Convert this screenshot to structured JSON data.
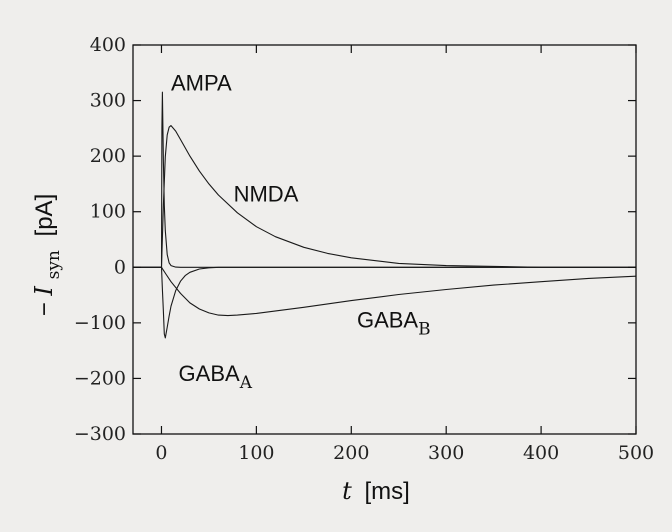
{
  "chart_data": {
    "type": "line",
    "title": "",
    "xlabel": {
      "var": "t",
      "unit": "[ms]"
    },
    "ylabel": {
      "prefix": "−",
      "var": "I",
      "sub": "syn",
      "unit": "[pA]"
    },
    "xlim": [
      -30,
      500
    ],
    "ylim": [
      -300,
      400
    ],
    "xticks": [
      0,
      100,
      200,
      300,
      400,
      500
    ],
    "yticks": [
      -300,
      -200,
      -100,
      0,
      100,
      200,
      300,
      400
    ],
    "xtick_labels": [
      "0",
      "100",
      "200",
      "300",
      "400",
      "500"
    ],
    "ytick_labels": [
      "−300",
      "−200",
      "−100",
      "0",
      "100",
      "200",
      "300",
      "400"
    ],
    "grid": false,
    "series": [
      {
        "name": "AMPA",
        "label_parts": [
          "AMPA",
          ""
        ],
        "x": [
          -30,
          0,
          0.5,
          1,
          2,
          3,
          4,
          6,
          8,
          10,
          15,
          20,
          30,
          40,
          60,
          100,
          200,
          300,
          400,
          500
        ],
        "y": [
          0,
          0,
          250,
          315,
          190,
          112,
          66,
          23,
          8,
          3,
          0.3,
          0,
          0,
          0,
          0,
          0,
          0,
          0,
          0,
          0
        ]
      },
      {
        "name": "NMDA",
        "label_parts": [
          "NMDA",
          ""
        ],
        "x": [
          -30,
          0,
          2,
          4,
          6,
          8,
          10,
          15,
          20,
          30,
          40,
          50,
          60,
          80,
          100,
          120,
          150,
          175,
          200,
          250,
          300,
          400,
          500
        ],
        "y": [
          0,
          0,
          112,
          199,
          238,
          252,
          255,
          245,
          230,
          200,
          173,
          150,
          130,
          98,
          73,
          55,
          36,
          25,
          17,
          7,
          3,
          0,
          0
        ]
      },
      {
        "name": "GABA_A",
        "label_parts": [
          "GABA",
          "A"
        ],
        "x": [
          -30,
          0,
          1,
          2,
          3,
          4,
          5,
          6,
          8,
          10,
          15,
          20,
          25,
          30,
          40,
          50,
          60,
          80,
          100,
          200,
          300,
          400,
          500
        ],
        "y": [
          0,
          0,
          -40,
          -80,
          -120,
          -127,
          -118,
          -108,
          -88,
          -70,
          -42,
          -25,
          -15,
          -9,
          -3,
          -1,
          0,
          0,
          0,
          0,
          0,
          0,
          0
        ]
      },
      {
        "name": "GABA_B",
        "label_parts": [
          "GABA",
          "B"
        ],
        "x": [
          -30,
          0,
          5,
          10,
          20,
          30,
          40,
          50,
          60,
          70,
          80,
          100,
          150,
          200,
          250,
          300,
          350,
          400,
          450,
          500
        ],
        "y": [
          0,
          0,
          -13,
          -26,
          -47,
          -64,
          -75,
          -82,
          -86,
          -87,
          -86,
          -83,
          -72,
          -60,
          -49,
          -40,
          -32,
          -26,
          -20,
          -16
        ]
      }
    ],
    "annotations": [
      {
        "series": "AMPA",
        "x": 10,
        "y": 318
      },
      {
        "series": "NMDA",
        "x": 76,
        "y": 118
      },
      {
        "series": "GABA_B",
        "x": 206,
        "y": -108
      },
      {
        "series": "GABA_A",
        "x": 18,
        "y": -205
      }
    ]
  }
}
